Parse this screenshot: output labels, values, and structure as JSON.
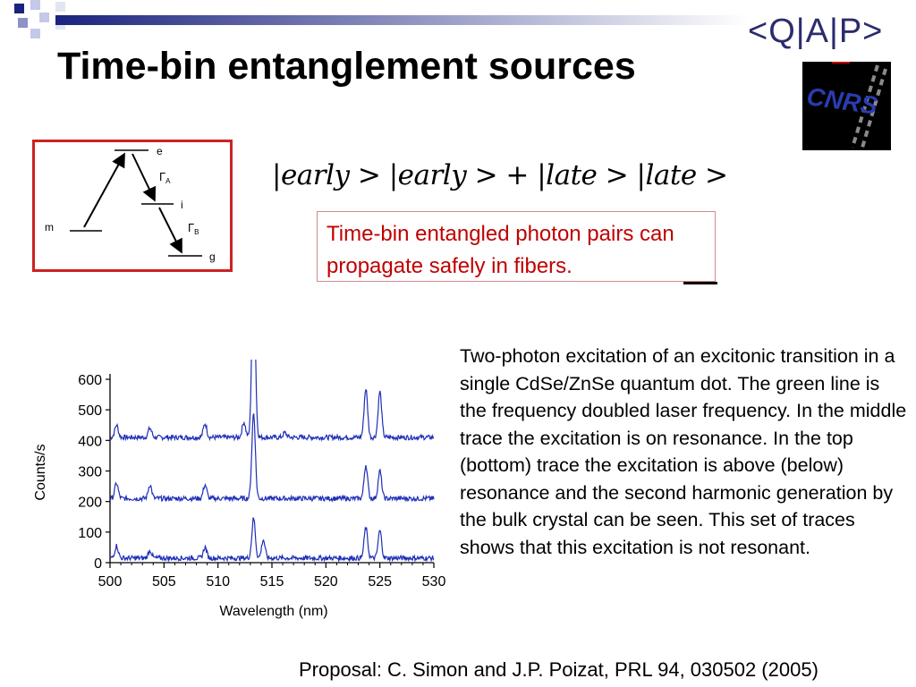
{
  "slide": {
    "title": "Time-bin entanglement sources",
    "formula": "|early > |early > + |late > |late >",
    "callout": "Time-bin entangled photon pairs can propagate safely in fibers.",
    "caption": "Two-photon excitation of an excitonic transition in a single CdSe/ZnSe quantum dot. The green line is the frequency doubled laser frequency. In the middle trace the excitation is on resonance. In the top (bottom) trace the excitation is above (below) resonance and the  second harmonic generation by the bulk crystal can be seen. This set of traces shows that this excitation is not resonant.",
    "reference": "Proposal: C. Simon and J.P. Poizat, PRL 94, 030502 (2005)"
  },
  "logos": {
    "qiap": "<Q|A|P>",
    "cnrs": "CNRS"
  },
  "level_diagram": {
    "levels": [
      "e",
      "i",
      "g",
      "m"
    ],
    "rates": [
      {
        "symbol": "Γ",
        "subscript": "A"
      },
      {
        "symbol": "Γ",
        "subscript": "B"
      }
    ]
  },
  "colors": {
    "title": "#000000",
    "callout_text": "#c00000",
    "diagram_border": "#cc2222",
    "trace": "#1f2fb8",
    "header_squares": [
      "#1a237e",
      "#8d92c8",
      "#c5c8e6"
    ]
  },
  "chart_data": {
    "type": "line",
    "xlabel": "Wavelength (nm)",
    "ylabel": "Counts/s",
    "xlim": [
      500,
      530
    ],
    "ylim": [
      0,
      600
    ],
    "xticks": [
      500,
      505,
      510,
      515,
      520,
      525,
      530
    ],
    "yticks": [
      0,
      100,
      200,
      300,
      400,
      500,
      600
    ],
    "grid": false,
    "series": [
      {
        "baseline": 410,
        "peaks": [
          [
            500.6,
            40
          ],
          [
            503.7,
            30
          ],
          [
            508.8,
            45
          ],
          [
            512.4,
            50
          ],
          [
            513.3,
            560
          ],
          [
            516.2,
            15
          ],
          [
            523.7,
            160
          ],
          [
            525.0,
            150
          ]
        ]
      },
      {
        "baseline": 210,
        "peaks": [
          [
            500.6,
            50
          ],
          [
            503.7,
            45
          ],
          [
            508.8,
            45
          ],
          [
            513.3,
            280
          ],
          [
            523.7,
            110
          ],
          [
            525.0,
            90
          ]
        ]
      },
      {
        "baseline": 15,
        "peaks": [
          [
            500.6,
            40
          ],
          [
            503.7,
            25
          ],
          [
            508.8,
            35
          ],
          [
            513.3,
            130
          ],
          [
            514.2,
            60
          ],
          [
            523.7,
            100
          ],
          [
            525.0,
            90
          ]
        ]
      }
    ]
  }
}
